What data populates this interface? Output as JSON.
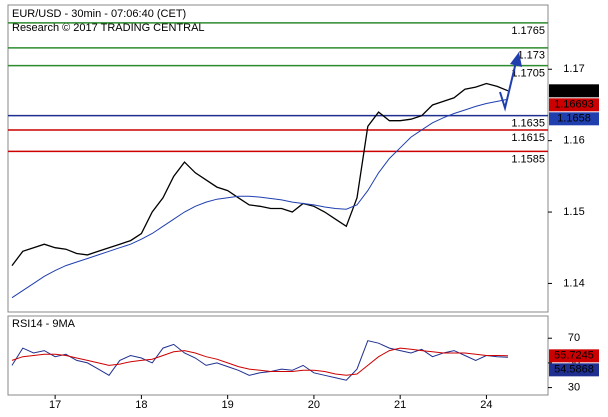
{
  "chart_data": [
    {
      "type": "line",
      "title": "EUR/USD - 30min - 07:06:40 (CET)",
      "subtitle": "Research © 2017 TRADING CENTRAL",
      "categories": [
        null,
        null,
        null,
        null,
        "17",
        null,
        null,
        null,
        null,
        null,
        null,
        null,
        "18",
        null,
        null,
        null,
        null,
        null,
        null,
        null,
        "19",
        null,
        null,
        null,
        null,
        null,
        null,
        null,
        "20",
        null,
        null,
        null,
        null,
        null,
        null,
        null,
        "21",
        null,
        null,
        null,
        null,
        null,
        null,
        null,
        "24",
        null,
        null
      ],
      "series": [
        {
          "color": "#000000",
          "values": [
            1.1425,
            1.1445,
            1.145,
            1.1455,
            1.145,
            1.1448,
            1.1442,
            1.144,
            1.1445,
            1.145,
            1.1455,
            1.146,
            1.147,
            1.15,
            1.152,
            1.155,
            1.157,
            1.1555,
            1.1545,
            1.1535,
            1.153,
            1.152,
            1.151,
            1.1508,
            1.1505,
            1.1505,
            1.15,
            1.1512,
            1.1508,
            1.15,
            1.149,
            1.148,
            1.152,
            1.162,
            1.164,
            1.1628,
            1.1628,
            1.163,
            1.1635,
            1.165,
            1.1655,
            1.166,
            1.1672,
            1.1675,
            1.168,
            1.1676,
            1.16698
          ]
        },
        {
          "color": "#1f3faf",
          "values": [
            1.138,
            1.139,
            1.14,
            1.141,
            1.1418,
            1.1425,
            1.143,
            1.1435,
            1.144,
            1.1445,
            1.145,
            1.1455,
            1.1462,
            1.147,
            1.148,
            1.149,
            1.15,
            1.1508,
            1.1514,
            1.1518,
            1.152,
            1.1522,
            1.1522,
            1.1521,
            1.1519,
            1.1517,
            1.1514,
            1.1512,
            1.151,
            1.1507,
            1.1505,
            1.1504,
            1.151,
            1.153,
            1.1555,
            1.1575,
            1.159,
            1.1605,
            1.1615,
            1.1625,
            1.1632,
            1.1638,
            1.1643,
            1.1648,
            1.1652,
            1.1655,
            1.1658
          ]
        }
      ],
      "ylim": [
        1.136,
        1.179
      ],
      "yticks": [
        1.14,
        1.15,
        1.16,
        1.17
      ],
      "levels": [
        {
          "value": 1.1765,
          "color": "#2e8b2e"
        },
        {
          "value": 1.173,
          "color": "#2e8b2e"
        },
        {
          "value": 1.1705,
          "color": "#2e8b2e"
        },
        {
          "value": 1.1635,
          "color": "#1f2f8f"
        },
        {
          "value": 1.1615,
          "color": "#cc0000"
        },
        {
          "value": 1.1585,
          "color": "#cc0000"
        }
      ],
      "price_labels": [
        {
          "value": 1.16698,
          "color": "#000000"
        },
        {
          "value": 1.16693,
          "color": "#cc0000"
        },
        {
          "value": 1.1658,
          "color": "#1f3faf"
        }
      ]
    },
    {
      "type": "line",
      "title": "RSI14 - 9MA",
      "series": [
        {
          "color": "#1f2f8f",
          "values": [
            48,
            62,
            58,
            60,
            55,
            57,
            52,
            50,
            45,
            40,
            52,
            56,
            54,
            50,
            62,
            65,
            58,
            54,
            48,
            50,
            47,
            44,
            40,
            42,
            43,
            45,
            44,
            48,
            42,
            40,
            38,
            36,
            45,
            68,
            66,
            62,
            60,
            58,
            61,
            55,
            58,
            60,
            56,
            52,
            56,
            55,
            54.5868
          ]
        },
        {
          "color": "#cc0000",
          "values": [
            52,
            55,
            56,
            57,
            57,
            56,
            54,
            52,
            50,
            48,
            49,
            51,
            52,
            53,
            56,
            59,
            60,
            58,
            55,
            53,
            50,
            47,
            45,
            44,
            43,
            43,
            43,
            44,
            44,
            43,
            41,
            40,
            41,
            48,
            55,
            60,
            62,
            61,
            60,
            59,
            58,
            58,
            58,
            57,
            56,
            56,
            55.7245
          ]
        }
      ],
      "ylim": [
        24,
        88
      ],
      "yticks": [
        30,
        50,
        70
      ],
      "price_labels": [
        {
          "value": 55.7245,
          "color": "#cc0000"
        },
        {
          "value": 54.5868,
          "color": "#1f2f8f"
        }
      ]
    }
  ]
}
